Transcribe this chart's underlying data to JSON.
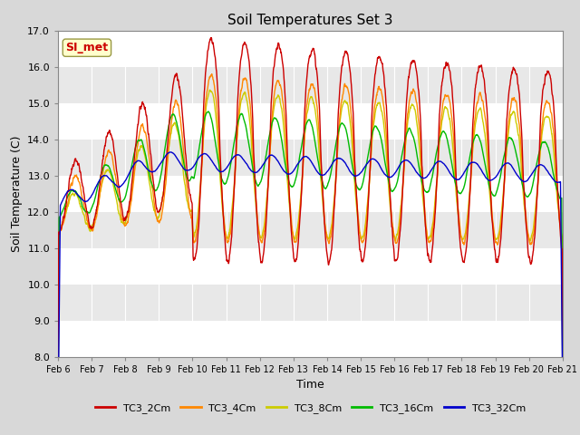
{
  "title": "Soil Temperatures Set 3",
  "xlabel": "Time",
  "ylabel": "Soil Temperature (C)",
  "ylim": [
    8.0,
    17.0
  ],
  "yticks": [
    8.0,
    9.0,
    10.0,
    11.0,
    12.0,
    13.0,
    14.0,
    15.0,
    16.0,
    17.0
  ],
  "xtick_labels": [
    "Feb 6",
    "Feb 7",
    "Feb 8",
    "Feb 9",
    "Feb 10",
    "Feb 11",
    "Feb 12",
    "Feb 13",
    "Feb 14",
    "Feb 15",
    "Feb 16",
    "Feb 17",
    "Feb 18",
    "Feb 19",
    "Feb 20",
    "Feb 21"
  ],
  "series_names": [
    "TC3_2Cm",
    "TC3_4Cm",
    "TC3_8Cm",
    "TC3_16Cm",
    "TC3_32Cm"
  ],
  "legend_colors": [
    "#cc0000",
    "#ff8800",
    "#cccc00",
    "#00bb00",
    "#0000cc"
  ],
  "watermark_text": "SI_met",
  "bg_color": "#d8d8d8",
  "stripe_light": "#e8e8e8",
  "stripe_dark": "#d0d0d0"
}
